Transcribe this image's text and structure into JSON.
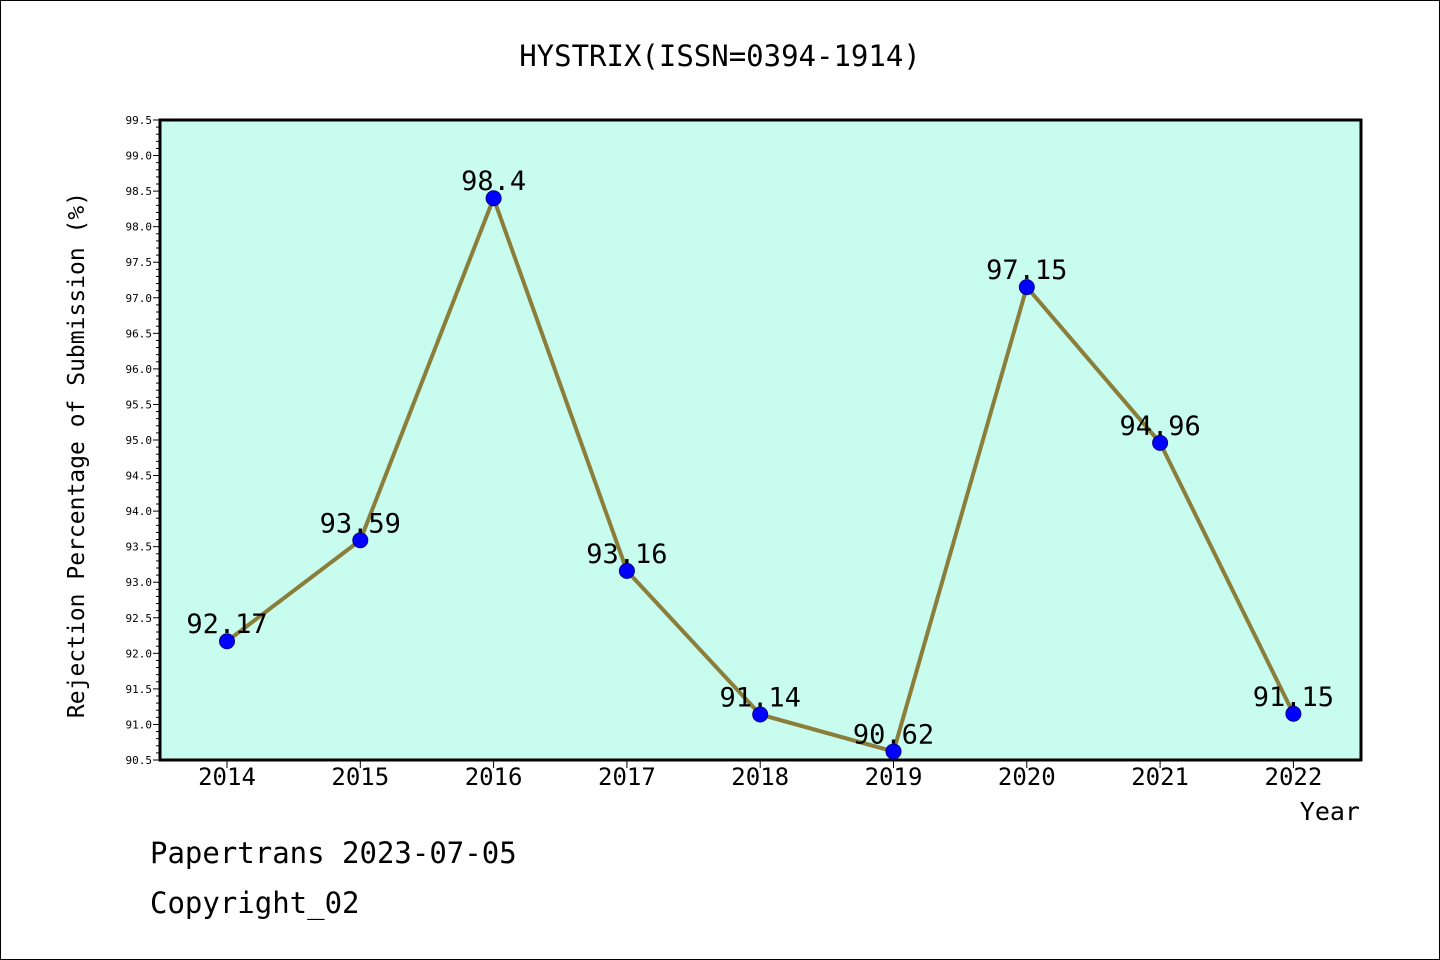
{
  "chart_data": {
    "type": "line",
    "title": "HYSTRIX(ISSN=0394-1914)",
    "xlabel": "Year",
    "ylabel": "Rejection Percentage of Submission (%)",
    "categories": [
      "2014",
      "2015",
      "2016",
      "2017",
      "2018",
      "2019",
      "2020",
      "2021",
      "2022"
    ],
    "series": [
      {
        "values": [
          92.17,
          93.59,
          98.4,
          93.16,
          91.14,
          90.62,
          97.15,
          94.96,
          91.15
        ],
        "labels": [
          "92.17",
          "93.59",
          "98.4",
          "93.16",
          "91.14",
          "90.62",
          "97.15",
          "94.96",
          "91.15"
        ]
      }
    ],
    "ylim": [
      90.5,
      99.5
    ],
    "yticks": [
      "90.5",
      "91.0",
      "91.5",
      "92.0",
      "92.5",
      "93.0",
      "93.5",
      "94.0",
      "94.5",
      "95.0",
      "95.5",
      "96.0",
      "96.5",
      "97.0",
      "97.5",
      "98.0",
      "98.5",
      "99.0",
      "99.5"
    ],
    "grid": false,
    "colors": {
      "plot_background": "#c8fcee",
      "line": "#8b7d3a",
      "marker": "#0000ff"
    }
  },
  "footer": {
    "source": "Papertrans 2023-07-05",
    "copyright": "Copyright_02"
  }
}
